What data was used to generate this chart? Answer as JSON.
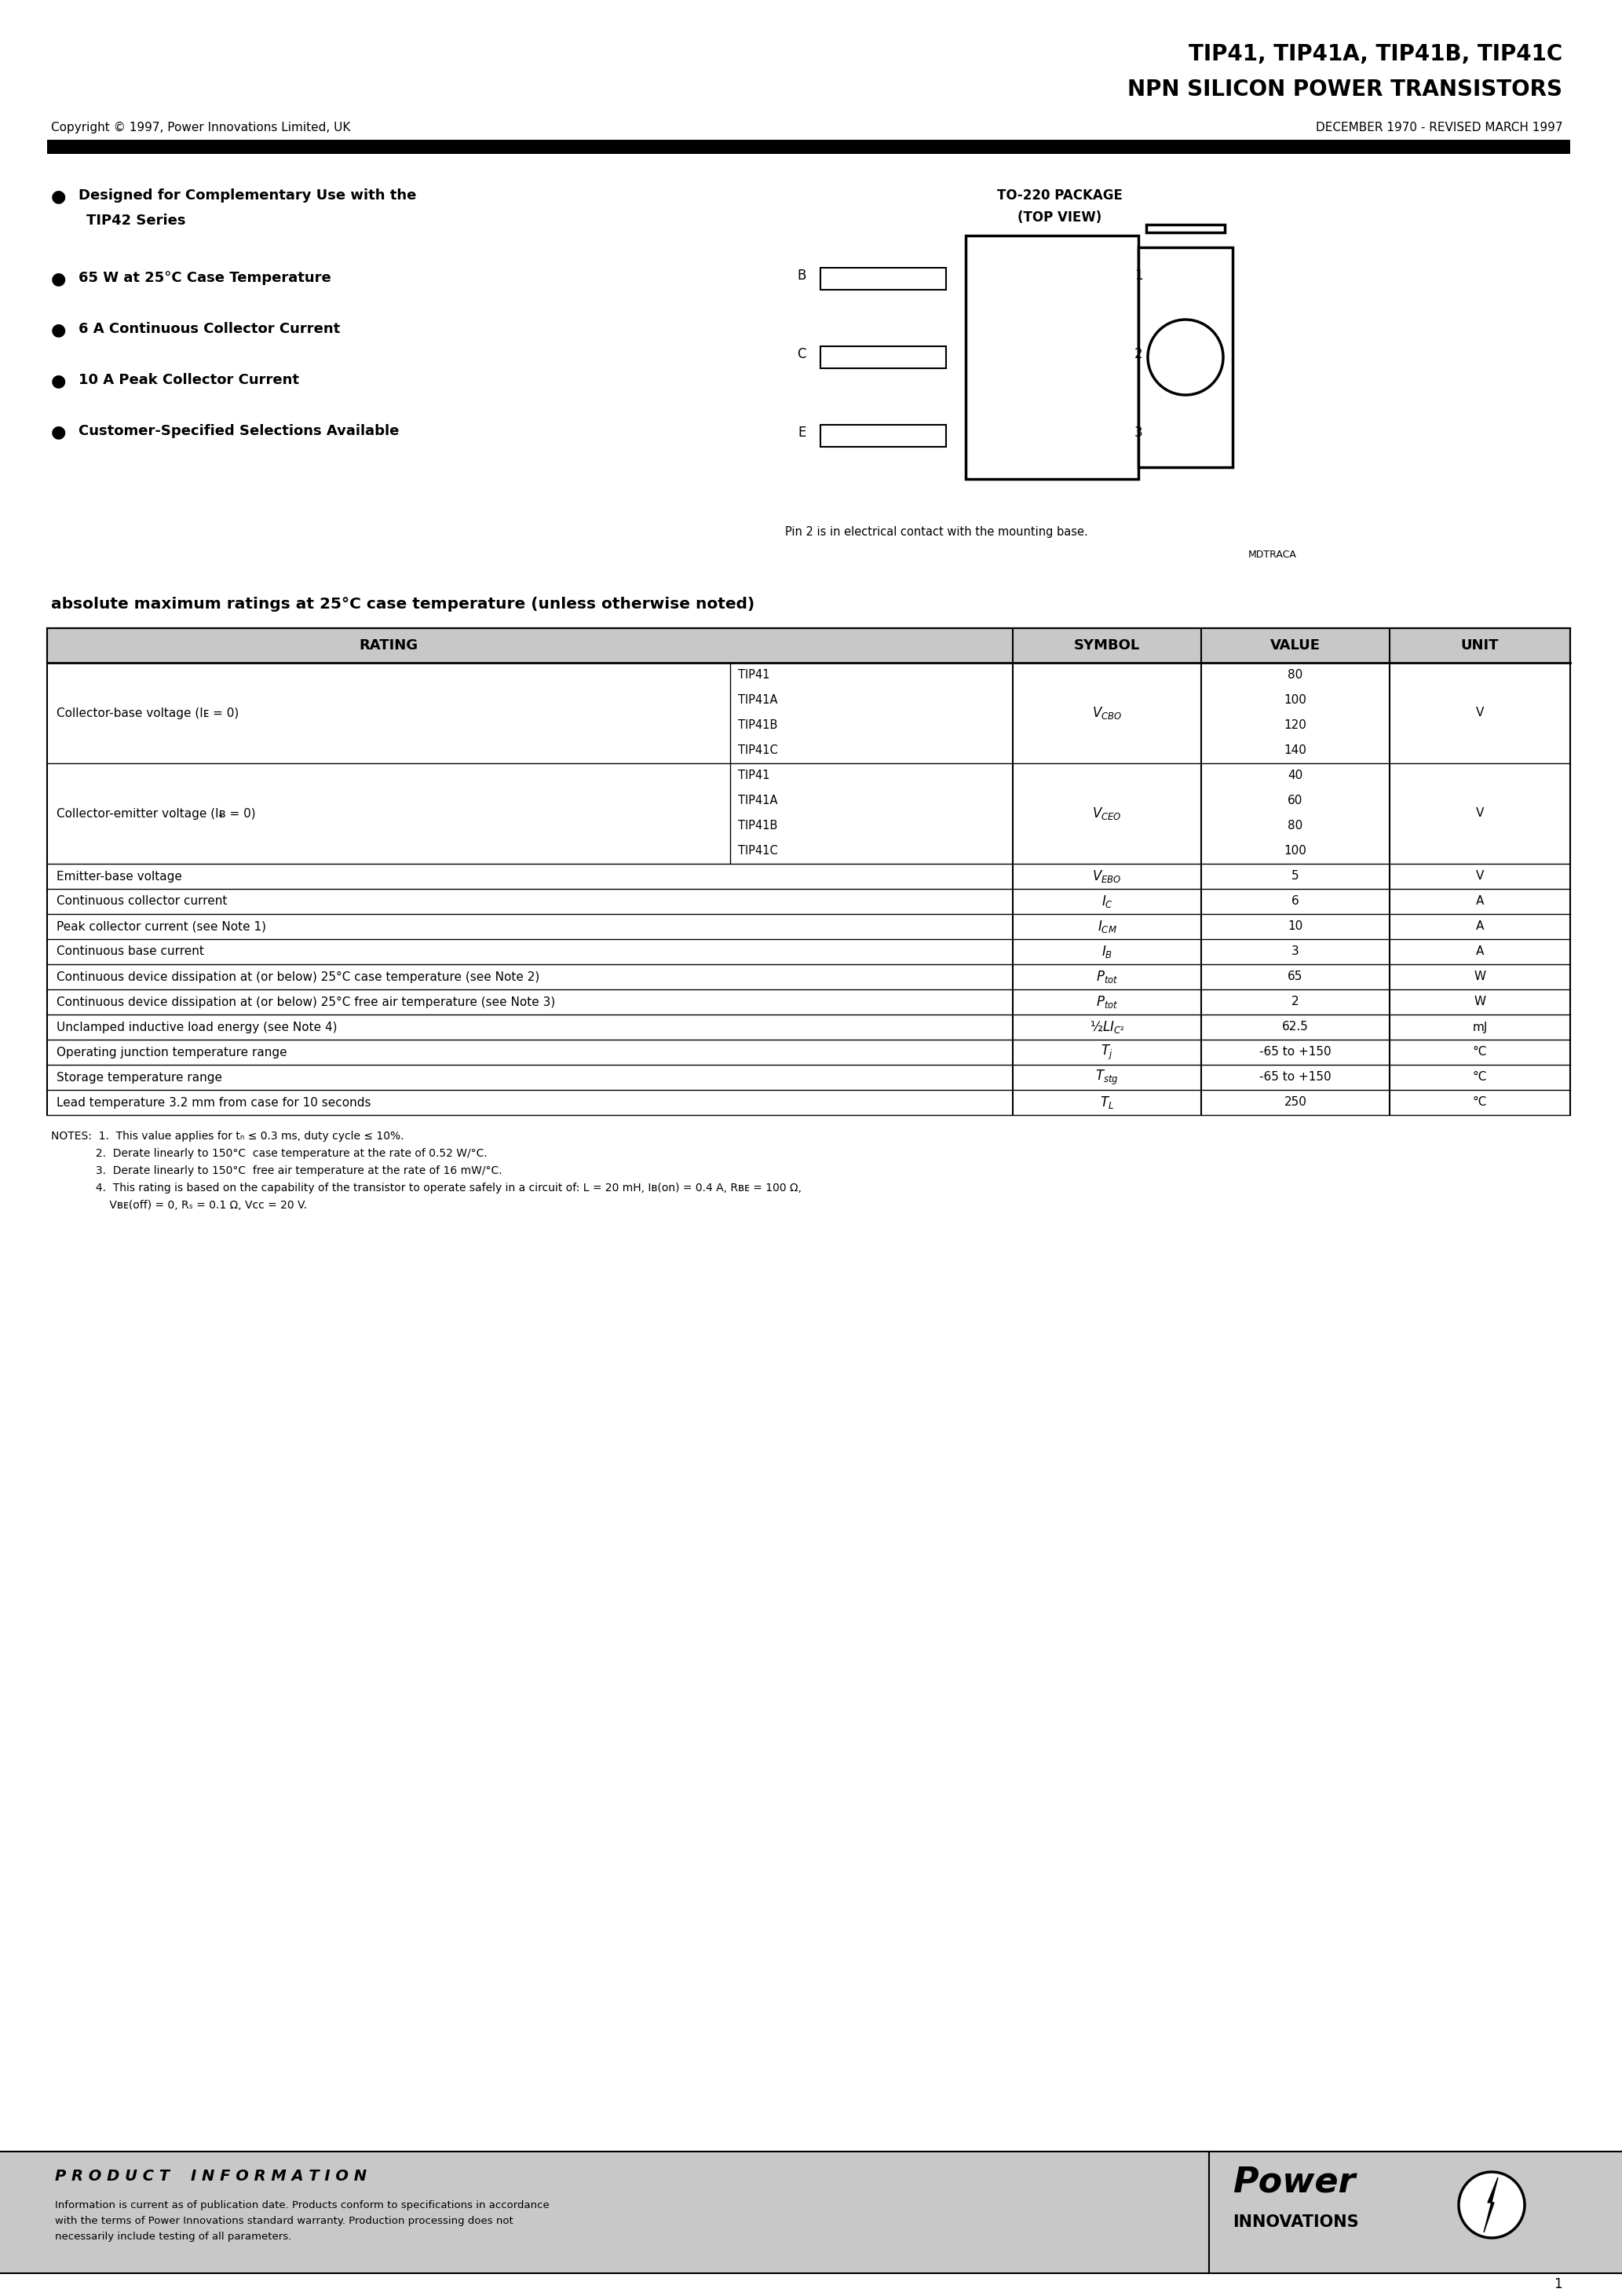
{
  "title_line1": "TIP41, TIP41A, TIP41B, TIP41C",
  "title_line2": "NPN SILICON POWER TRANSISTORS",
  "copyright": "Copyright © 1997, Power Innovations Limited, UK",
  "date_info": "DECEMBER 1970 - REVISED MARCH 1997",
  "feature1a": "Designed for Complementary Use with the",
  "feature1b": "TIP42 Series",
  "feature2": "65 W at 25°C Case Temperature",
  "feature3": "6 A Continuous Collector Current",
  "feature4": "10 A Peak Collector Current",
  "feature5": "Customer-Specified Selections Available",
  "pkg_title1": "TO-220 PACKAGE",
  "pkg_title2": "(TOP VIEW)",
  "pin_note": "Pin 2 is in electrical contact with the mounting base.",
  "pin_note2": "MDTRACA",
  "tbl_title": "absolute maximum ratings at 25°C case temperature (unless otherwise noted)",
  "tbl_headers": [
    "RATING",
    "SYMBOL",
    "VALUE",
    "UNIT"
  ],
  "note1": "NOTES:  1.  This value applies for tₙ ≤ 0.3 ms, duty cycle ≤ 10%.",
  "note2": "             2.  Derate linearly to 150°C  case temperature at the rate of 0.52 W/°C.",
  "note3": "             3.  Derate linearly to 150°C  free air temperature at the rate of 16 mW/°C.",
  "note4a": "             4.  This rating is based on the capability of the transistor to operate safely in a circuit of: L = 20 mH, Iʙ(on) = 0.4 A, Rʙᴇ = 100 Ω,",
  "note4b": "                 Vʙᴇ(off) = 0, Rₛ = 0.1 Ω, Vᴄᴄ = 20 V.",
  "footer_left_title": "P R O D U C T    I N F O R M A T I O N",
  "footer_left1": "Information is current as of publication date. Products conform to specifications in accordance",
  "footer_left2": "with the terms of Power Innovations standard warranty. Production processing does not",
  "footer_left3": "necessarily include testing of all parameters.",
  "footer_logo1": "Power",
  "footer_logo2": "INNOVATIONS",
  "page_num": "1",
  "bg": "#ffffff",
  "black": "#000000",
  "gray_hdr": "#c8c8c8",
  "gray_footer": "#c8c8c8"
}
